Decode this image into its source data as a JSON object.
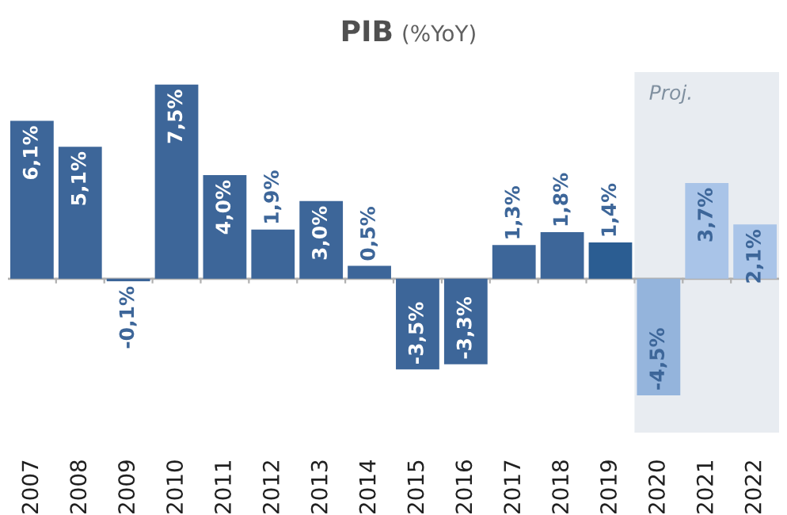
{
  "chart_data": {
    "type": "bar",
    "title": "PIB",
    "subtitle": "(%YoY)",
    "categories": [
      "2007",
      "2008",
      "2009",
      "2010",
      "2011",
      "2012",
      "2013",
      "2014",
      "2015",
      "2016",
      "2017",
      "2018",
      "2019",
      "2020",
      "2021",
      "2022"
    ],
    "values": [
      6.1,
      5.1,
      -0.1,
      7.5,
      4.0,
      1.9,
      3.0,
      0.5,
      -3.5,
      -3.3,
      1.3,
      1.8,
      1.4,
      -4.5,
      3.7,
      2.1
    ],
    "value_labels": [
      "6,1%",
      "5,1%",
      "-0,1%",
      "7,5%",
      "4,0%",
      "1,9%",
      "3,0%",
      "0,5%",
      "-3,5%",
      "-3,3%",
      "1,3%",
      "1,8%",
      "1,4%",
      "-4,5%",
      "3,7%",
      "2,1%"
    ],
    "colors": [
      "#3d6699",
      "#3d6699",
      "#3d6699",
      "#3d6699",
      "#3d6699",
      "#3d6699",
      "#3d6699",
      "#3d6699",
      "#3d6699",
      "#3d6699",
      "#3d6699",
      "#3d6699",
      "#2b5d92",
      "#94b4dc",
      "#a9c4e8",
      "#a9c4e8"
    ],
    "bands": [
      {
        "axis": "x",
        "from": "2020",
        "to": "2022",
        "label": "Proj.",
        "color": "#e8ecf1"
      }
    ],
    "grid": false,
    "legend": false
  }
}
